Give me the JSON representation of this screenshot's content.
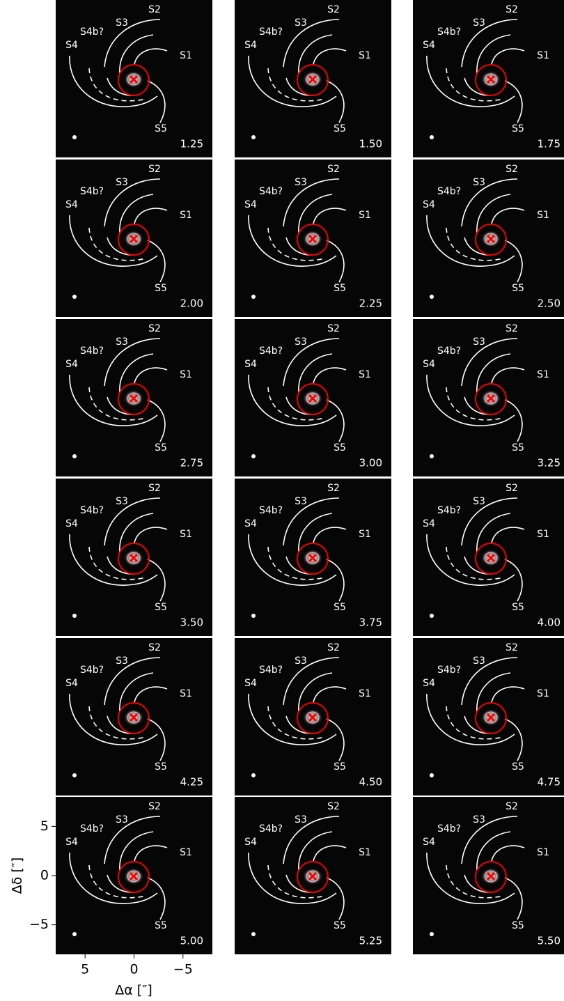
{
  "panels": [
    "1.25",
    "1.50",
    "1.75",
    "2.00",
    "2.25",
    "2.50",
    "2.75",
    "3.00",
    "3.25",
    "3.50",
    "3.75",
    "4.00",
    "4.25",
    "4.50",
    "4.75",
    "5.00",
    "5.25",
    "5.50"
  ],
  "spiral_labels": [
    "S1",
    "S2",
    "S3",
    "S4",
    "S4b?",
    "S5"
  ],
  "axes": {
    "xlabel": "Δα [″]",
    "ylabel": "Δδ [″]",
    "xlim": [
      8,
      -8
    ],
    "ylim": [
      -8,
      8
    ],
    "xticks": [
      5,
      0,
      {
        "value": -5,
        "label": "−5"
      }
    ],
    "yticks": [
      {
        "value": -5,
        "label": "−5"
      },
      0,
      5
    ]
  }
}
